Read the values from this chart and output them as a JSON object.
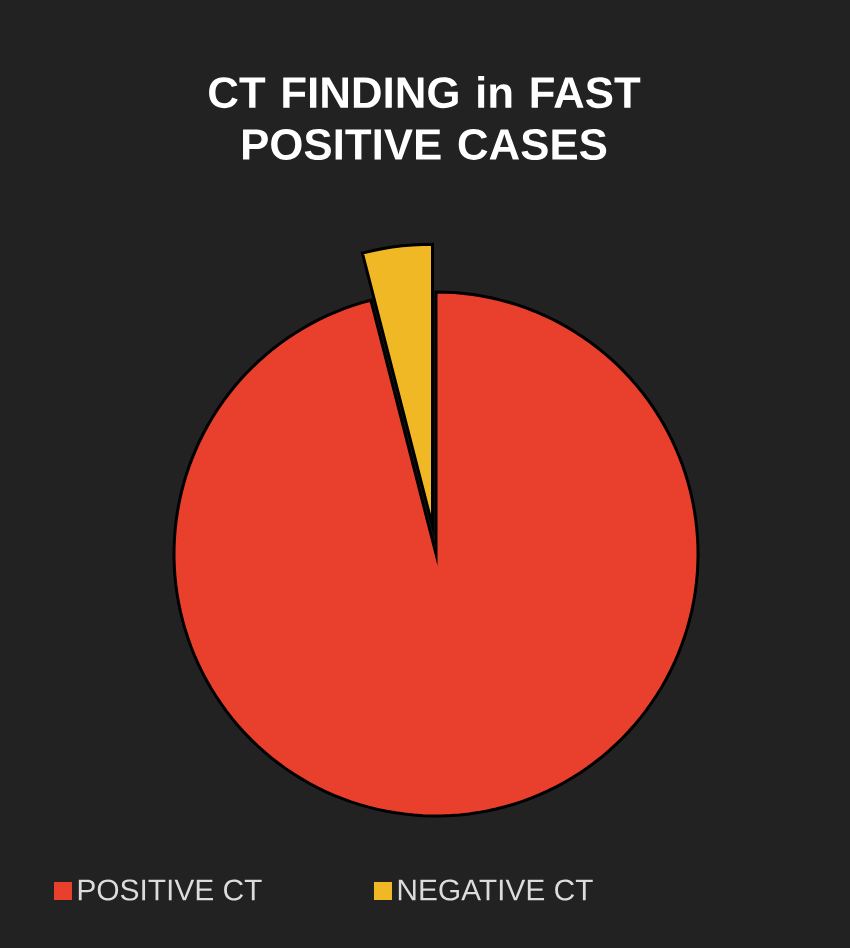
{
  "chart_data": {
    "type": "pie",
    "title": "CT FINDING in FAST POSITIVE CASES",
    "categories": [
      "POSITIVE CT",
      "NEGATIVE CT"
    ],
    "values": [
      96,
      4
    ],
    "colors": [
      "#e8402c",
      "#f0b824"
    ],
    "legend": "bottom"
  }
}
